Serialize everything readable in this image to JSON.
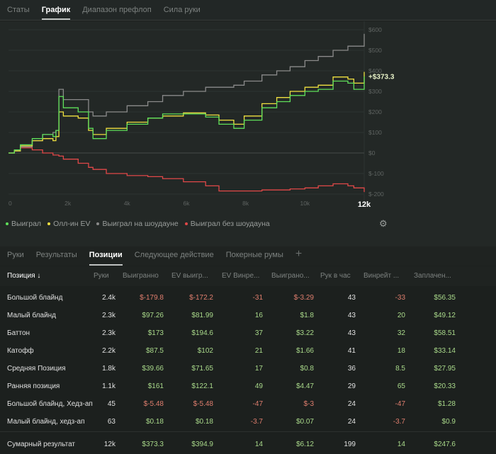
{
  "top_tabs": [
    {
      "label": "Статы"
    },
    {
      "label": "График",
      "active": true
    },
    {
      "label": "Диапазон префлоп"
    },
    {
      "label": "Сила руки"
    }
  ],
  "chart_data": {
    "type": "line",
    "x": [
      0,
      200,
      400,
      800,
      1150,
      1500,
      1600,
      1700,
      1850,
      2350,
      2700,
      2850,
      3300,
      4000,
      4700,
      5200,
      5900,
      6650,
      7100,
      7600,
      7950,
      8550,
      9050,
      9500,
      10000,
      10450,
      10950,
      11450,
      11650,
      12000
    ],
    "series": [
      {
        "name": "Выиграл",
        "color": "#5fe05a",
        "values": [
          0,
          15,
          40,
          70,
          90,
          80,
          110,
          275,
          220,
          200,
          120,
          70,
          110,
          140,
          170,
          190,
          190,
          175,
          140,
          120,
          160,
          220,
          250,
          280,
          300,
          310,
          350,
          340,
          310,
          373
        ]
      },
      {
        "name": "Олл-ин EV",
        "color": "#f0e040",
        "values": [
          0,
          10,
          35,
          60,
          70,
          60,
          80,
          200,
          180,
          170,
          110,
          90,
          120,
          150,
          170,
          180,
          195,
          185,
          160,
          140,
          180,
          240,
          270,
          300,
          320,
          330,
          370,
          360,
          340,
          395
        ]
      },
      {
        "name": "Выиграл на шоудауне",
        "color": "#8a8a8a",
        "values": [
          0,
          10,
          30,
          60,
          90,
          100,
          110,
          310,
          260,
          260,
          200,
          180,
          200,
          230,
          250,
          280,
          300,
          320,
          320,
          330,
          350,
          380,
          400,
          420,
          450,
          470,
          500,
          520,
          520,
          580
        ]
      },
      {
        "name": "Выиграл без шоудауна",
        "color": "#e04848",
        "values": [
          0,
          15,
          25,
          15,
          0,
          -10,
          -10,
          -15,
          -30,
          -50,
          -70,
          -80,
          -100,
          -110,
          -115,
          -125,
          -140,
          -160,
          -185,
          -185,
          -185,
          -180,
          -180,
          -175,
          -170,
          -160,
          -150,
          -160,
          -170,
          -190
        ]
      }
    ],
    "x_ticks": [
      "0",
      "2k",
      "4k",
      "6k",
      "8k",
      "10k",
      "12k"
    ],
    "y_ticks": [
      "$600",
      "$500",
      "$400",
      "$300",
      "$200",
      "$100",
      "$0",
      "$-100",
      "$-200"
    ],
    "y_tick_values": [
      600,
      500,
      400,
      300,
      200,
      100,
      0,
      -100,
      -200
    ],
    "xlim": [
      0,
      12000
    ],
    "ylim": [
      -230,
      620
    ],
    "current_label": "+$373.3",
    "grid": true,
    "legend": "bottom-left"
  },
  "bottom_tabs": [
    {
      "label": "Руки"
    },
    {
      "label": "Результаты"
    },
    {
      "label": "Позиции",
      "active": true
    },
    {
      "label": "Следующее действие"
    },
    {
      "label": "Покерные румы"
    }
  ],
  "add_tab": "+",
  "table": {
    "headers": [
      "Позиция ↓",
      "Руки",
      "Выигранно",
      "EV выигр...",
      "EV Винре...",
      "Выиграно...",
      "Рук в час",
      "Винрейт ...",
      "Заплачен..."
    ],
    "rows": [
      [
        "Большой блайнд",
        "2.4k",
        "$-179.8",
        "$-172.2",
        "-31",
        "$-3.29",
        "43",
        "-33",
        "$56.35"
      ],
      [
        "Малый блайнд",
        "2.3k",
        "$97.26",
        "$81.99",
        "16",
        "$1.8",
        "43",
        "20",
        "$49.12"
      ],
      [
        "Баттон",
        "2.3k",
        "$173",
        "$194.6",
        "37",
        "$3.22",
        "43",
        "32",
        "$58.51"
      ],
      [
        "Катофф",
        "2.2k",
        "$87.5",
        "$102",
        "21",
        "$1.66",
        "41",
        "18",
        "$33.14"
      ],
      [
        "Средняя Позиция",
        "1.8k",
        "$39.66",
        "$71.65",
        "17",
        "$0.8",
        "36",
        "8.5",
        "$27.95"
      ],
      [
        "Ранняя позиция",
        "1.1k",
        "$161",
        "$122.1",
        "49",
        "$4.47",
        "29",
        "65",
        "$20.33"
      ],
      [
        "Большой блайнд, Хедз-ап",
        "45",
        "$-5.48",
        "$-5.48",
        "-47",
        "$-3",
        "24",
        "-47",
        "$1.28"
      ],
      [
        "Малый блайнд, хедз-ап",
        "63",
        "$0.18",
        "$0.18",
        "-3.7",
        "$0.07",
        "24",
        "-3.7",
        "$0.9"
      ]
    ],
    "total": [
      "Сумарный результат",
      "12k",
      "$373.3",
      "$394.9",
      "14",
      "$6.12",
      "199",
      "14",
      "$247.6"
    ]
  }
}
